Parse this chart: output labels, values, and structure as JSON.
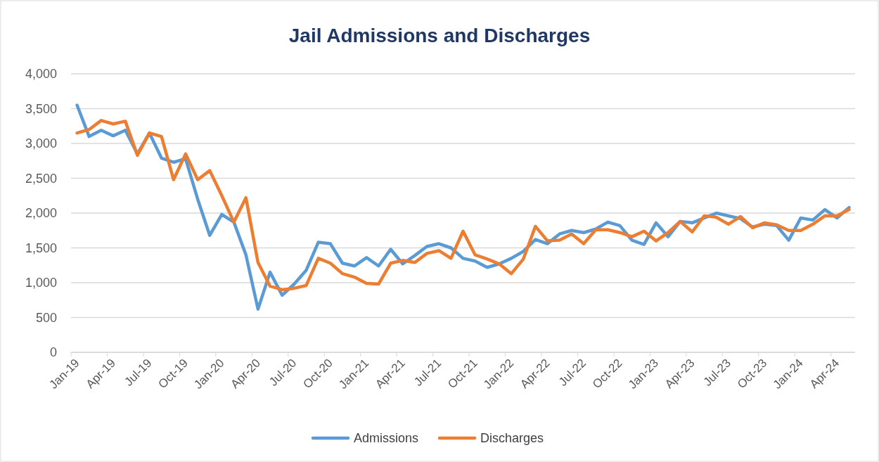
{
  "chart_data": {
    "type": "line",
    "title": "Jail Admissions and Discharges",
    "categories": [
      "Jan-19",
      null,
      null,
      "Apr-19",
      null,
      null,
      "Jul-19",
      null,
      null,
      "Oct-19",
      null,
      null,
      "Jan-20",
      null,
      null,
      "Apr-20",
      null,
      null,
      "Jul-20",
      null,
      null,
      "Oct-20",
      null,
      null,
      "Jan-21",
      null,
      null,
      "Apr-21",
      null,
      null,
      "Jul-21",
      null,
      null,
      "Oct-21",
      null,
      null,
      "Jan-22",
      null,
      null,
      "Apr-22",
      null,
      null,
      "Jul-22",
      null,
      null,
      "Oct-22",
      null,
      null,
      "Jan-23",
      null,
      null,
      "Apr-23",
      null,
      null,
      "Jul-23",
      null,
      null,
      "Oct-23",
      null,
      null,
      "Jan-24",
      null,
      null,
      "Apr-24",
      null
    ],
    "series": [
      {
        "name": "Admissions",
        "color": "#5b9bd5",
        "values": [
          3550,
          3100,
          3190,
          3110,
          3190,
          2850,
          3150,
          2790,
          2730,
          2780,
          2200,
          1680,
          1980,
          1870,
          1400,
          620,
          1150,
          820,
          980,
          1180,
          1580,
          1560,
          1280,
          1240,
          1360,
          1240,
          1480,
          1270,
          1390,
          1520,
          1560,
          1500,
          1350,
          1310,
          1220,
          1270,
          1350,
          1450,
          1620,
          1560,
          1700,
          1750,
          1720,
          1770,
          1870,
          1820,
          1610,
          1550,
          1860,
          1660,
          1880,
          1860,
          1930,
          2000,
          1960,
          1920,
          1800,
          1840,
          1820,
          1610,
          1930,
          1900,
          2050,
          1930,
          2080
        ]
      },
      {
        "name": "Discharges",
        "color": "#ed7d31",
        "values": [
          3150,
          3200,
          3330,
          3280,
          3320,
          2830,
          3150,
          3100,
          2480,
          2850,
          2480,
          2610,
          2250,
          1870,
          2220,
          1290,
          950,
          900,
          920,
          960,
          1350,
          1280,
          1130,
          1080,
          990,
          980,
          1280,
          1320,
          1290,
          1420,
          1460,
          1350,
          1740,
          1400,
          1340,
          1270,
          1130,
          1340,
          1810,
          1600,
          1610,
          1700,
          1560,
          1760,
          1760,
          1720,
          1660,
          1740,
          1600,
          1720,
          1880,
          1730,
          1960,
          1940,
          1840,
          1950,
          1790,
          1860,
          1830,
          1750,
          1750,
          1840,
          1960,
          1960,
          2050
        ]
      }
    ],
    "ylim": [
      0,
      4000
    ],
    "yticks": [
      {
        "value": 0,
        "label": "0"
      },
      {
        "value": 500,
        "label": "500"
      },
      {
        "value": 1000,
        "label": "1,000"
      },
      {
        "value": 1500,
        "label": "1,500"
      },
      {
        "value": 2000,
        "label": "2,000"
      },
      {
        "value": 2500,
        "label": "2,500"
      },
      {
        "value": 3000,
        "label": "3,000"
      },
      {
        "value": 3500,
        "label": "3,500"
      },
      {
        "value": 4000,
        "label": "4,000"
      }
    ],
    "grid": "y",
    "legend": "bottom",
    "marker": "none",
    "line_style": "solid"
  }
}
